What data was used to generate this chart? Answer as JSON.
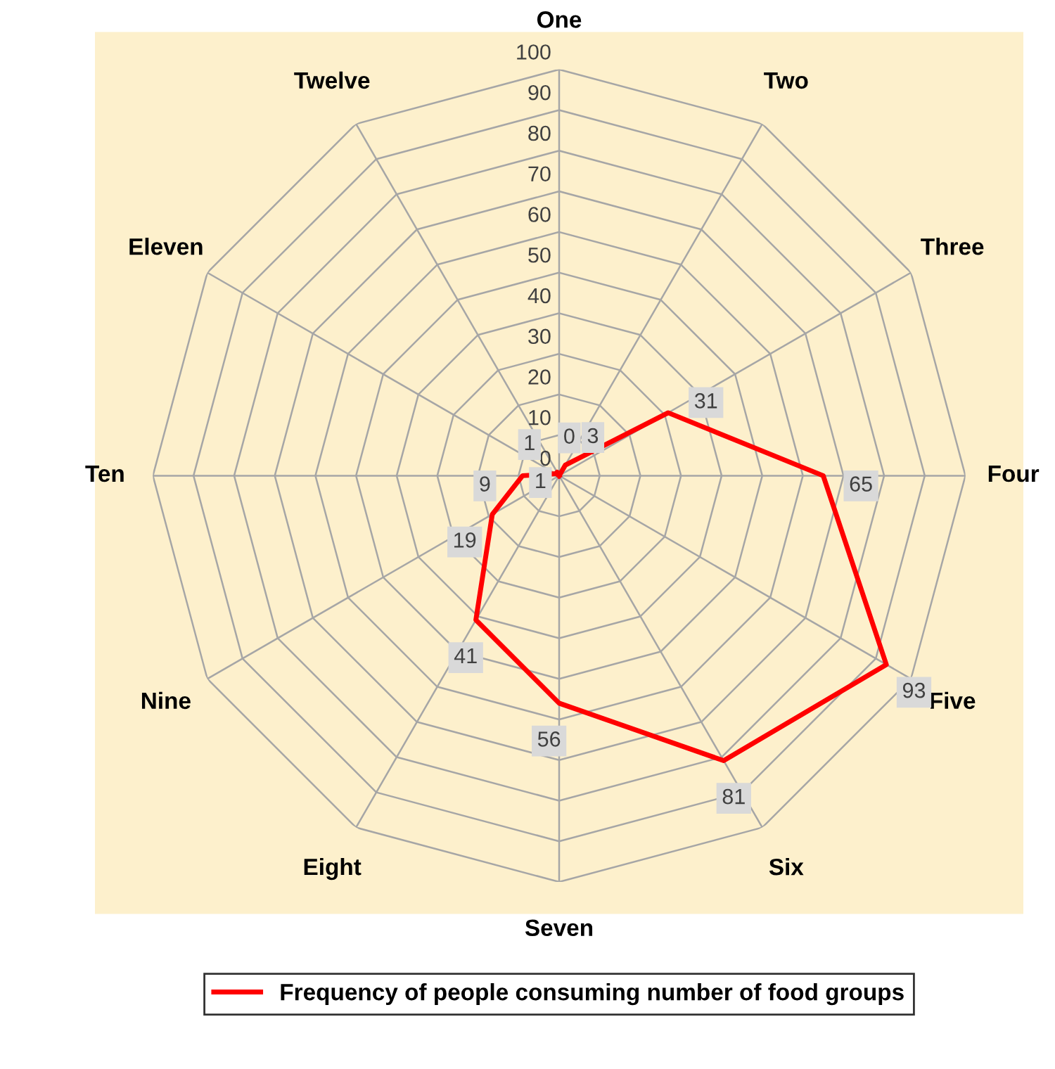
{
  "chart_data": {
    "type": "radar",
    "categories": [
      "One",
      "Two",
      "Three",
      "Four",
      "Five",
      "Six",
      "Seven",
      "Eight",
      "Nine",
      "Ten",
      "Eleven",
      "Twelve"
    ],
    "series": [
      {
        "name": "Frequency of people consuming number of food groups",
        "color": "#ff0000",
        "values": [
          0,
          3,
          31,
          65,
          93,
          81,
          56,
          41,
          19,
          9,
          1,
          1
        ]
      }
    ],
    "ylim": [
      0,
      100
    ],
    "yticks": [
      0,
      10,
      20,
      30,
      40,
      50,
      60,
      70,
      80,
      90,
      100
    ],
    "data_labels": true,
    "legend": "bottom",
    "grid": true,
    "marker": "none",
    "line_style": "solid"
  }
}
